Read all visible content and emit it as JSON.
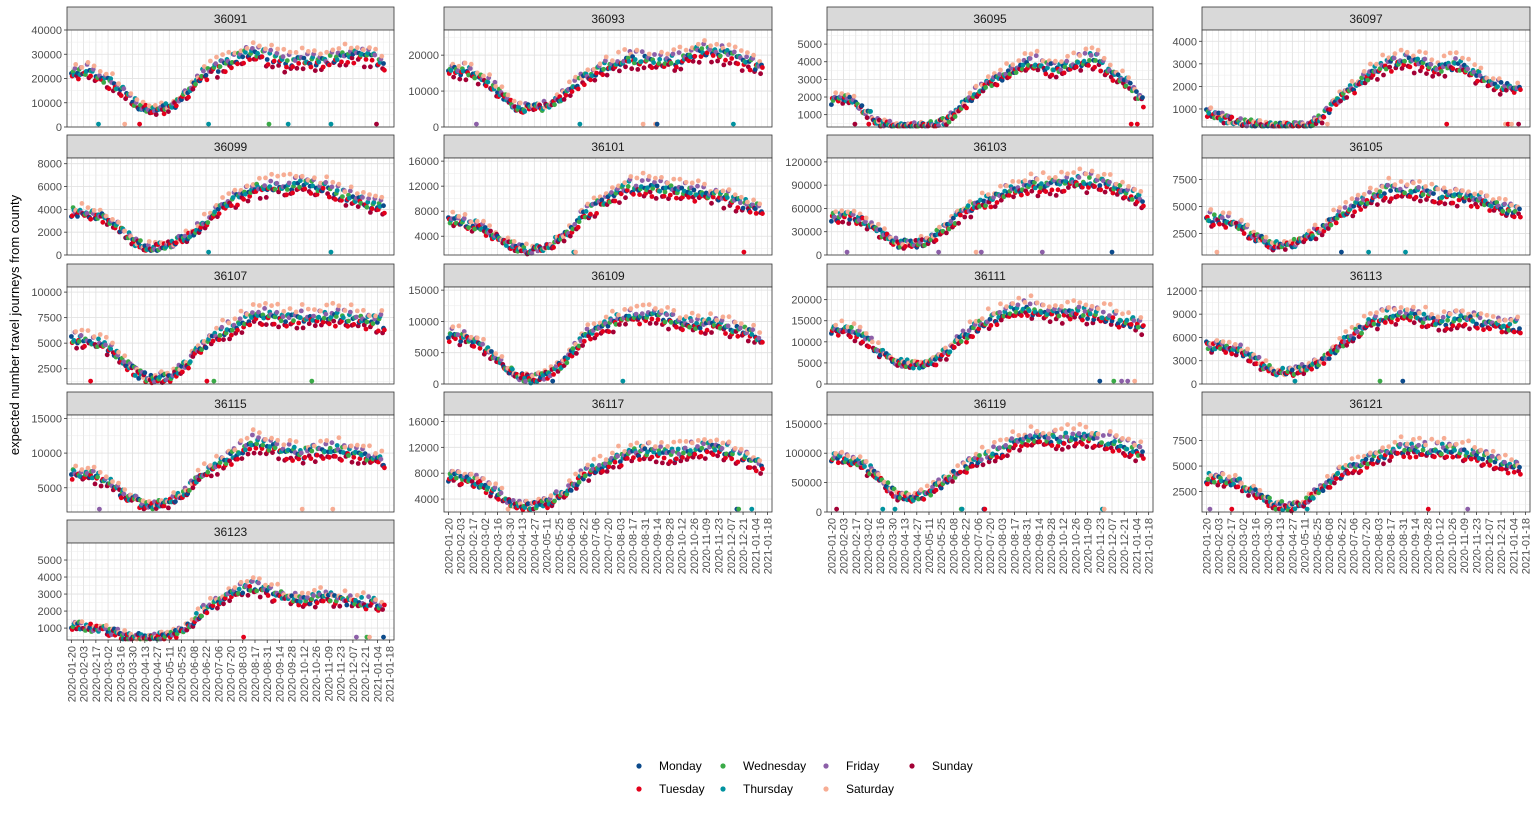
{
  "chart_data": {
    "type": "scatter",
    "title": "",
    "ylabel": "expected number travel journeys from county",
    "xlabel": "",
    "x_range": [
      "2020-01-20",
      "2021-01-18"
    ],
    "x_tick_labels": [
      "2020-01-20",
      "2020-02-03",
      "2020-02-17",
      "2020-03-02",
      "2020-03-16",
      "2020-03-30",
      "2020-04-13",
      "2020-04-27",
      "2020-05-11",
      "2020-05-25",
      "2020-06-08",
      "2020-06-22",
      "2020-07-06",
      "2020-07-20",
      "2020-08-03",
      "2020-08-17",
      "2020-08-31",
      "2020-09-14",
      "2020-09-28",
      "2020-10-12",
      "2020-10-26",
      "2020-11-09",
      "2020-11-23",
      "2020-12-07",
      "2020-12-21",
      "2021-01-04",
      "2021-01-18"
    ],
    "grid": true,
    "legend_position": "bottom",
    "series": [
      {
        "name": "Monday",
        "color": "#0b4a8b"
      },
      {
        "name": "Tuesday",
        "color": "#e3001b"
      },
      {
        "name": "Wednesday",
        "color": "#3aaa47"
      },
      {
        "name": "Thursday",
        "color": "#00929f"
      },
      {
        "name": "Friday",
        "color": "#8c5fa8"
      },
      {
        "name": "Saturday",
        "color": "#f7ad94"
      },
      {
        "name": "Sunday",
        "color": "#a30035"
      }
    ],
    "panels": [
      {
        "name": "36091",
        "ylim": [
          0,
          40000
        ],
        "yticks": [
          0,
          10000,
          20000,
          30000,
          40000
        ],
        "tick_labels": [
          "0",
          "10000",
          "20000",
          "30000",
          "40000"
        ],
        "anchors": [
          22000,
          23000,
          20000,
          16000,
          9000,
          7000,
          8000,
          14000,
          22000,
          25000,
          29000,
          31000,
          29000,
          27000,
          28000,
          27000,
          28000,
          30000,
          29000,
          27000
        ]
      },
      {
        "name": "36093",
        "ylim": [
          0,
          27000
        ],
        "yticks": [
          0,
          10000,
          20000
        ],
        "tick_labels": [
          "0",
          "10000",
          "20000"
        ],
        "anchors": [
          16000,
          16000,
          14000,
          10000,
          6000,
          5000,
          6000,
          9000,
          13000,
          16000,
          17000,
          19000,
          19000,
          18000,
          19000,
          21000,
          21000,
          20000,
          18000,
          17000
        ]
      },
      {
        "name": "36095",
        "ylim": [
          300,
          5800
        ],
        "yticks": [
          1000,
          2000,
          3000,
          4000,
          5000
        ],
        "tick_labels": [
          "1000",
          "2000",
          "3000",
          "4000",
          "5000"
        ],
        "anchors": [
          1800,
          2000,
          1200,
          500,
          300,
          300,
          400,
          600,
          1500,
          2500,
          3000,
          3500,
          4000,
          3800,
          3600,
          4000,
          4200,
          3500,
          2800,
          1800
        ]
      },
      {
        "name": "36097",
        "ylim": [
          200,
          4500
        ],
        "yticks": [
          1000,
          2000,
          3000,
          4000
        ],
        "tick_labels": [
          "1000",
          "2000",
          "3000",
          "4000"
        ],
        "anchors": [
          900,
          600,
          400,
          300,
          200,
          200,
          300,
          600,
          1400,
          2000,
          2600,
          3000,
          3200,
          3000,
          2800,
          3000,
          2700,
          2200,
          2000,
          2000
        ]
      },
      {
        "name": "36099",
        "ylim": [
          0,
          8500
        ],
        "yticks": [
          0,
          2000,
          4000,
          6000,
          8000
        ],
        "tick_labels": [
          "0",
          "2000",
          "4000",
          "6000",
          "8000"
        ],
        "anchors": [
          3800,
          3700,
          3300,
          2200,
          1000,
          700,
          900,
          1600,
          2800,
          4200,
          5000,
          5800,
          6000,
          6000,
          6200,
          6000,
          5600,
          5000,
          4500,
          4300
        ]
      },
      {
        "name": "36101",
        "ylim": [
          1000,
          16500
        ],
        "yticks": [
          4000,
          8000,
          12000,
          16000
        ],
        "tick_labels": [
          "4000",
          "8000",
          "12000",
          "16000"
        ],
        "anchors": [
          6500,
          6200,
          5500,
          4000,
          2200,
          1800,
          2500,
          4000,
          7000,
          9000,
          10500,
          12000,
          12000,
          11500,
          11500,
          11000,
          10500,
          10000,
          9000,
          8500
        ]
      },
      {
        "name": "36103",
        "ylim": [
          0,
          125000
        ],
        "yticks": [
          0,
          30000,
          60000,
          90000,
          120000
        ],
        "tick_labels": [
          "0",
          "30000",
          "60000",
          "90000",
          "120000"
        ],
        "anchors": [
          50000,
          50000,
          45000,
          30000,
          15000,
          14000,
          20000,
          35000,
          55000,
          65000,
          75000,
          85000,
          90000,
          90000,
          92000,
          95000,
          95000,
          90000,
          80000,
          70000
        ]
      },
      {
        "name": "36105",
        "ylim": [
          500,
          9500
        ],
        "yticks": [
          2500,
          5000,
          7500
        ],
        "tick_labels": [
          "2500",
          "5000",
          "7500"
        ],
        "anchors": [
          4000,
          3800,
          3300,
          2200,
          1400,
          1400,
          2000,
          3000,
          4200,
          5000,
          5800,
          6500,
          6600,
          6500,
          6200,
          6000,
          5800,
          5500,
          4800,
          4500
        ]
      },
      {
        "name": "36107",
        "ylim": [
          1000,
          10500
        ],
        "yticks": [
          2500,
          5000,
          7500,
          10000
        ],
        "tick_labels": [
          "2500",
          "5000",
          "7500",
          "10000"
        ],
        "anchors": [
          5500,
          5200,
          4800,
          3500,
          2000,
          1500,
          1800,
          3000,
          4800,
          6000,
          6800,
          7500,
          7800,
          7500,
          7500,
          7500,
          7600,
          7500,
          7200,
          7000
        ]
      },
      {
        "name": "36109",
        "ylim": [
          0,
          15500
        ],
        "yticks": [
          0,
          5000,
          10000,
          15000
        ],
        "tick_labels": [
          "0",
          "5000",
          "10000",
          "15000"
        ],
        "anchors": [
          8000,
          7500,
          6500,
          4000,
          1500,
          800,
          1500,
          3500,
          7000,
          9000,
          10000,
          11000,
          11000,
          10500,
          10000,
          9500,
          9500,
          9000,
          8500,
          7000
        ]
      },
      {
        "name": "36111",
        "ylim": [
          0,
          23000
        ],
        "yticks": [
          0,
          5000,
          10000,
          15000,
          20000
        ],
        "tick_labels": [
          "0",
          "5000",
          "10000",
          "15000",
          "20000"
        ],
        "anchors": [
          13000,
          13000,
          11000,
          7500,
          5000,
          4500,
          5000,
          7500,
          11000,
          14000,
          16000,
          17500,
          18000,
          17000,
          16500,
          17000,
          16500,
          16000,
          15000,
          14000
        ]
      },
      {
        "name": "36113",
        "ylim": [
          0,
          12500
        ],
        "yticks": [
          0,
          3000,
          6000,
          9000,
          12000
        ],
        "tick_labels": [
          "0",
          "3000",
          "6000",
          "9000",
          "12000"
        ],
        "anchors": [
          5000,
          5000,
          4500,
          3000,
          1700,
          1500,
          2000,
          3000,
          5000,
          6500,
          8000,
          9000,
          9000,
          8500,
          8000,
          8500,
          8500,
          8000,
          7500,
          7500
        ]
      },
      {
        "name": "36115",
        "ylim": [
          1500,
          15500
        ],
        "yticks": [
          5000,
          10000,
          15000
        ],
        "tick_labels": [
          "5000",
          "10000",
          "15000"
        ],
        "anchors": [
          7000,
          7000,
          6200,
          4500,
          3000,
          2500,
          3000,
          4500,
          7000,
          8500,
          10000,
          11500,
          11000,
          10500,
          10000,
          10500,
          10500,
          10000,
          9500,
          9000
        ]
      },
      {
        "name": "36117",
        "ylim": [
          2000,
          17000
        ],
        "yticks": [
          4000,
          8000,
          12000,
          16000
        ],
        "tick_labels": [
          "4000",
          "8000",
          "12000",
          "16000"
        ],
        "anchors": [
          7500,
          7200,
          6500,
          5000,
          3000,
          2800,
          3500,
          5000,
          7500,
          9000,
          10000,
          11000,
          11500,
          11000,
          11000,
          12000,
          12000,
          11500,
          10500,
          9000
        ]
      },
      {
        "name": "36119",
        "ylim": [
          0,
          165000
        ],
        "yticks": [
          0,
          50000,
          100000,
          150000
        ],
        "tick_labels": [
          "0",
          "50000",
          "100000",
          "150000"
        ],
        "anchors": [
          90000,
          90000,
          80000,
          55000,
          30000,
          25000,
          35000,
          55000,
          75000,
          90000,
          100000,
          115000,
          125000,
          125000,
          125000,
          130000,
          125000,
          120000,
          110000,
          100000
        ]
      },
      {
        "name": "36121",
        "ylim": [
          500,
          10000
        ],
        "yticks": [
          2500,
          5000,
          7500
        ],
        "tick_labels": [
          "2500",
          "5000",
          "7500"
        ],
        "anchors": [
          3800,
          3700,
          3300,
          2300,
          1300,
          1000,
          1500,
          2800,
          4200,
          5000,
          5800,
          6400,
          6800,
          6600,
          6600,
          6600,
          6300,
          5800,
          5200,
          4800
        ]
      },
      {
        "name": "36123",
        "ylim": [
          300,
          6000
        ],
        "yticks": [
          1000,
          2000,
          3000,
          4000,
          5000
        ],
        "tick_labels": [
          "1000",
          "2000",
          "3000",
          "4000",
          "5000"
        ],
        "anchors": [
          1200,
          1100,
          900,
          600,
          450,
          450,
          600,
          1000,
          2000,
          2600,
          3200,
          3500,
          3200,
          2800,
          2600,
          2800,
          2800,
          2600,
          2500,
          2400
        ]
      }
    ]
  }
}
